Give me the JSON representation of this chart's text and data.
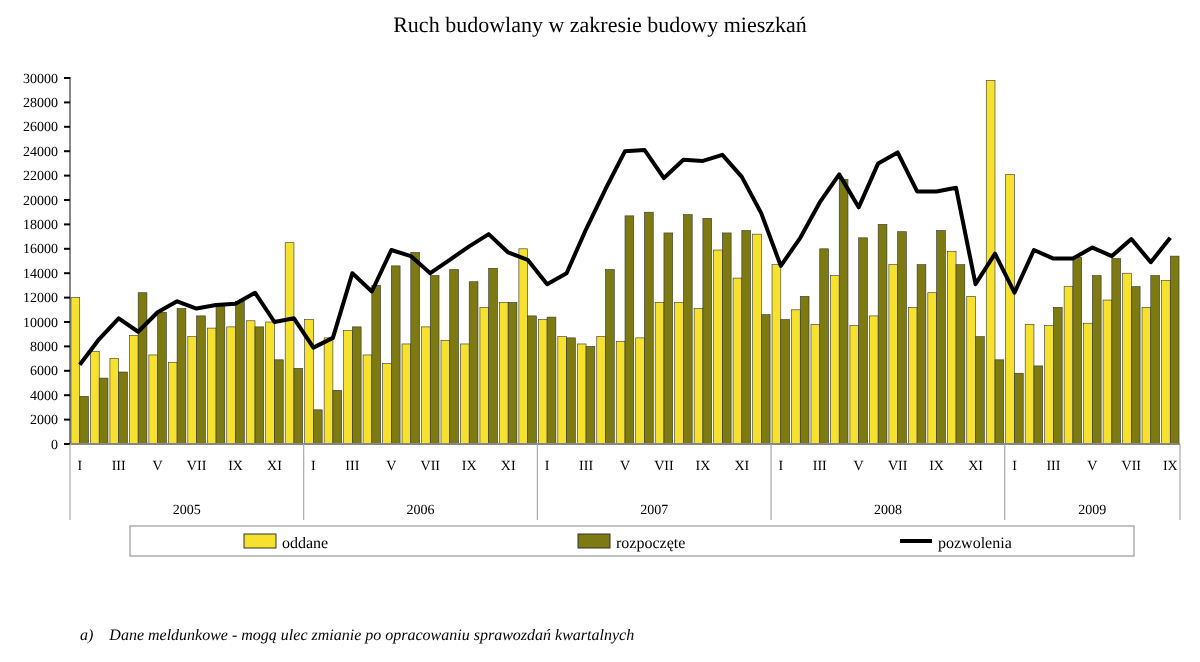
{
  "chart_data": {
    "type": "bar",
    "title": "Ruch budowlany w zakresie budowy mieszkań",
    "categories": [
      "I",
      null,
      "III",
      null,
      "V",
      null,
      "VII",
      null,
      "IX",
      null,
      "XI",
      null,
      "I",
      null,
      "III",
      null,
      "V",
      null,
      "VII",
      null,
      "IX",
      null,
      "XI",
      null,
      "I",
      null,
      "III",
      null,
      "V",
      null,
      "VII",
      null,
      "IX",
      null,
      "XI",
      null,
      "I",
      null,
      "III",
      null,
      "V",
      null,
      "VII",
      null,
      "IX",
      null,
      "XI",
      null,
      "I",
      null,
      "III",
      null,
      "V",
      null,
      "VII",
      null,
      "IX"
    ],
    "series": [
      {
        "name": "oddane",
        "color": "#f5e12e",
        "values": [
          12000,
          7600,
          7000,
          8900,
          7300,
          6700,
          8800,
          9500,
          9600,
          10100,
          10000,
          16500,
          10200,
          8700,
          9300,
          7300,
          6600,
          8200,
          9600,
          8500,
          8200,
          11200,
          11600,
          16000,
          10200,
          8800,
          8200,
          8800,
          8400,
          8700,
          11600,
          11600,
          11100,
          15900,
          13600,
          17200,
          14700,
          11000,
          9800,
          13800,
          9700,
          10500,
          14700,
          11200,
          12400,
          15800,
          12100,
          29800,
          22100,
          9800,
          9700,
          12900,
          9900,
          11800,
          14000,
          11200,
          13400
        ]
      },
      {
        "name": "rozpoczęte",
        "color": "#7d7a12",
        "values": [
          3900,
          5400,
          5900,
          12400,
          10800,
          11100,
          10500,
          11400,
          11700,
          9600,
          6900,
          6200,
          2800,
          4400,
          9600,
          13000,
          14600,
          15700,
          13800,
          14300,
          13300,
          14400,
          11600,
          10500,
          10400,
          8700,
          8000,
          14300,
          18700,
          19000,
          17300,
          18800,
          18500,
          17300,
          17500,
          10600,
          10200,
          12100,
          16000,
          21700,
          16900,
          18000,
          17400,
          14700,
          17500,
          14700,
          8800,
          6900,
          5800,
          6400,
          11200,
          15300,
          13800,
          15200,
          12900,
          13800,
          15400
        ]
      },
      {
        "name": "pozwolenia",
        "type": "line",
        "color": "#000000",
        "values": [
          6500,
          8600,
          10300,
          9200,
          10800,
          11700,
          11100,
          11400,
          11500,
          12400,
          10000,
          10300,
          7900,
          8700,
          14000,
          12500,
          15900,
          15400,
          14000,
          15100,
          16200,
          17200,
          15700,
          15100,
          13100,
          14000,
          17600,
          20900,
          24000,
          24100,
          21800,
          23300,
          23200,
          23700,
          21900,
          18900,
          14600,
          16900,
          19800,
          22100,
          19400,
          23000,
          23900,
          20700,
          20700,
          21000,
          13100,
          15600,
          12400,
          15900,
          15200,
          15200,
          16100,
          15400,
          16800,
          14900,
          16900
        ]
      }
    ],
    "ylim": [
      0,
      30000
    ],
    "yticks": [
      0,
      2000,
      4000,
      6000,
      8000,
      10000,
      12000,
      14000,
      16000,
      18000,
      20000,
      22000,
      24000,
      26000,
      28000,
      30000
    ],
    "grid": false,
    "legend": "bottom",
    "marker": "none",
    "line_style": "solid",
    "annotations": [
      "2005",
      "2006",
      "2007",
      "2008",
      "2009",
      "a)    Dane meldunkowe - mogą ulec zmianie po opracowaniu sprawozdań kwartalnych"
    ]
  }
}
